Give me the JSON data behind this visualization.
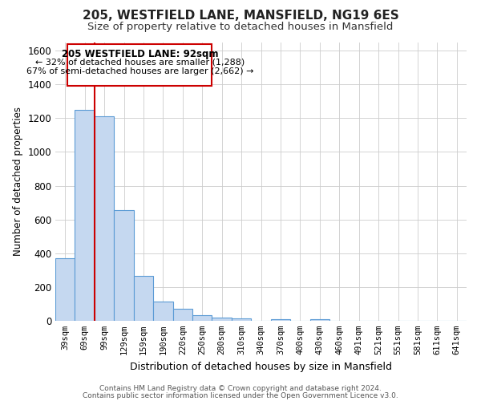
{
  "title": "205, WESTFIELD LANE, MANSFIELD, NG19 6ES",
  "subtitle": "Size of property relative to detached houses in Mansfield",
  "xlabel": "Distribution of detached houses by size in Mansfield",
  "ylabel": "Number of detached properties",
  "categories": [
    "39sqm",
    "69sqm",
    "99sqm",
    "129sqm",
    "159sqm",
    "190sqm",
    "220sqm",
    "250sqm",
    "280sqm",
    "310sqm",
    "340sqm",
    "370sqm",
    "400sqm",
    "430sqm",
    "460sqm",
    "491sqm",
    "521sqm",
    "551sqm",
    "581sqm",
    "611sqm",
    "641sqm"
  ],
  "values": [
    370,
    1250,
    1210,
    655,
    265,
    115,
    70,
    35,
    20,
    15,
    0,
    10,
    0,
    10,
    0,
    0,
    0,
    0,
    0,
    0,
    0
  ],
  "bar_color": "#c5d8f0",
  "bar_edge_color": "#5b9bd5",
  "reference_line_color": "#cc0000",
  "annotation_title": "205 WESTFIELD LANE: 92sqm",
  "annotation_line1": "← 32% of detached houses are smaller (1,288)",
  "annotation_line2": "67% of semi-detached houses are larger (2,662) →",
  "annotation_box_color": "#ffffff",
  "annotation_box_edge_color": "#cc0000",
  "ylim": [
    0,
    1650
  ],
  "yticks": [
    0,
    200,
    400,
    600,
    800,
    1000,
    1200,
    1400,
    1600
  ],
  "footer1": "Contains HM Land Registry data © Crown copyright and database right 2024.",
  "footer2": "Contains public sector information licensed under the Open Government Licence v3.0.",
  "background_color": "#ffffff",
  "grid_color": "#cccccc",
  "title_fontsize": 11,
  "subtitle_fontsize": 9.5
}
